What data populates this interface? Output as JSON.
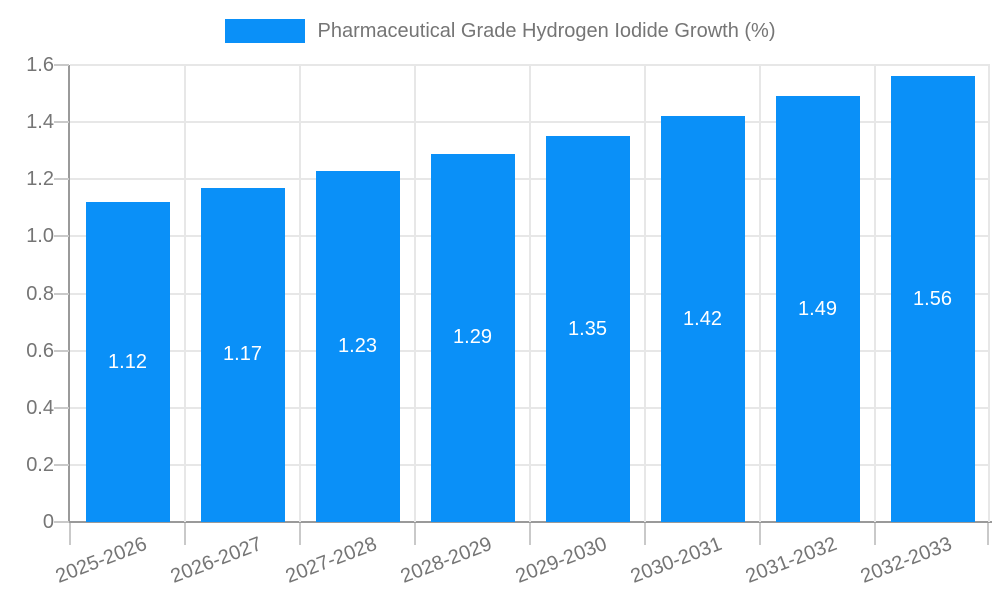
{
  "legend": {
    "label": "Pharmaceutical Grade Hydrogen Iodide Growth (%)"
  },
  "chart_data": {
    "type": "bar",
    "title": "Pharmaceutical Grade Hydrogen Iodide Growth (%)",
    "categories": [
      "2025-2026",
      "2026-2027",
      "2027-2028",
      "2028-2029",
      "2029-2030",
      "2030-2031",
      "2031-2032",
      "2032-2033"
    ],
    "values": [
      1.12,
      1.17,
      1.23,
      1.29,
      1.35,
      1.42,
      1.49,
      1.56
    ],
    "value_labels": [
      "1.12",
      "1.17",
      "1.23",
      "1.29",
      "1.35",
      "1.42",
      "1.49",
      "1.56"
    ],
    "xlabel": "",
    "ylabel": "",
    "ylim": [
      0,
      1.6
    ],
    "ytick_step": 0.2,
    "ytick_labels": [
      "0",
      "0.2",
      "0.4",
      "0.6",
      "0.8",
      "1.0",
      "1.2",
      "1.4",
      "1.6"
    ],
    "grid": true,
    "legend_position": "top-center",
    "bar_color": "#0a90f8",
    "value_label_color": "#ffffff",
    "text_color": "#757575",
    "grid_color": "#e7e7e7",
    "axis_color": "#9a9a9a",
    "tick_color": "#c9c9c9",
    "background_color": "#ffffff"
  }
}
